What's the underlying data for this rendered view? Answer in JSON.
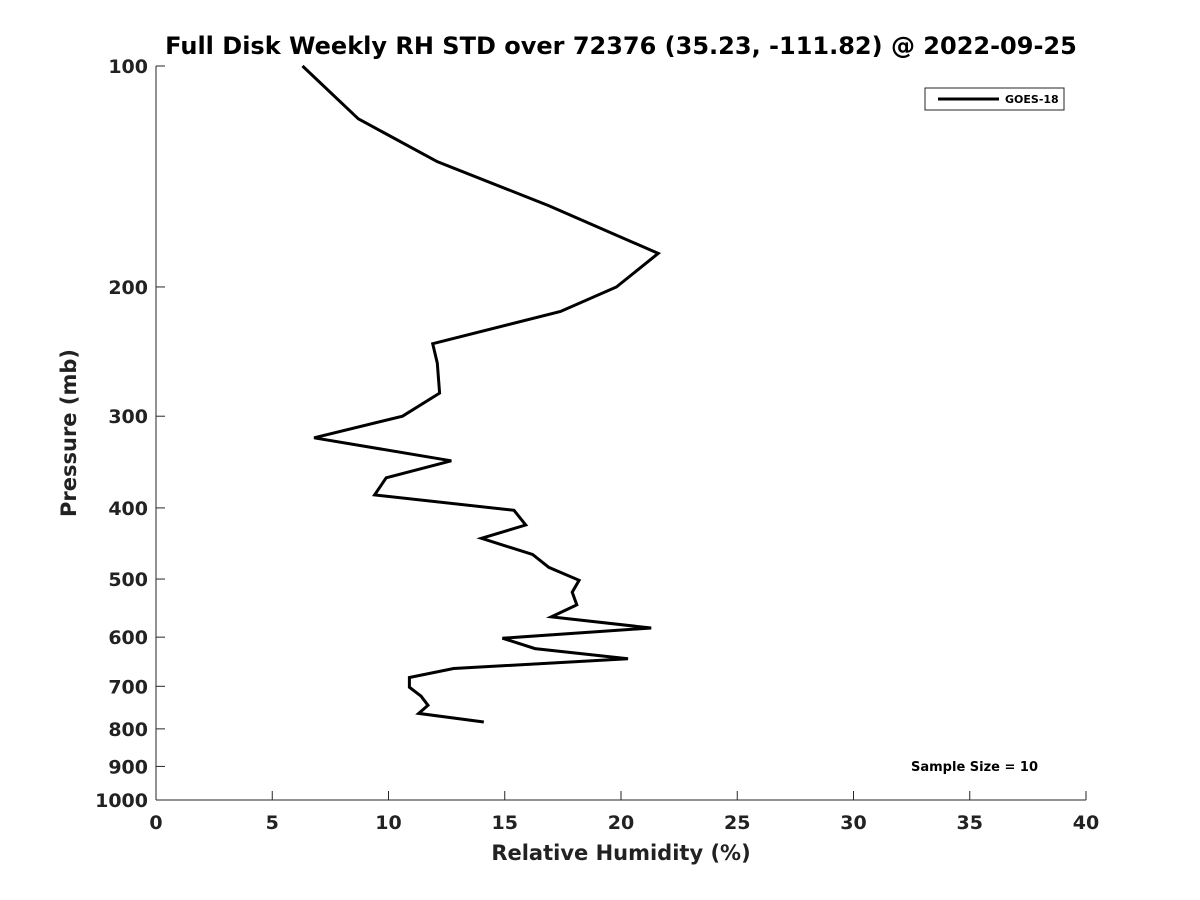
{
  "chart_data": {
    "type": "line",
    "title": "Full Disk Weekly RH STD over 72376 (35.23, -111.82) @ 2022-09-25",
    "xlabel": "Relative Humidity (%)",
    "ylabel": "Pressure (mb)",
    "xlim": [
      0,
      40
    ],
    "ylim": [
      100,
      1000
    ],
    "y_scale": "log",
    "y_reversed": true,
    "x_ticks": [
      0,
      5,
      10,
      15,
      20,
      25,
      30,
      35,
      40
    ],
    "y_ticks": [
      100,
      200,
      300,
      400,
      500,
      600,
      700,
      800,
      900,
      1000
    ],
    "grid": false,
    "legend_position": "top-right",
    "annotation": "Sample Size = 10",
    "series": [
      {
        "name": "GOES-18",
        "color": "#000000",
        "points": [
          {
            "x": 6.3,
            "y": 100
          },
          {
            "x": 8.7,
            "y": 118
          },
          {
            "x": 12.1,
            "y": 135
          },
          {
            "x": 16.9,
            "y": 155
          },
          {
            "x": 21.6,
            "y": 180
          },
          {
            "x": 19.8,
            "y": 200
          },
          {
            "x": 17.4,
            "y": 216
          },
          {
            "x": 11.9,
            "y": 239
          },
          {
            "x": 12.1,
            "y": 254
          },
          {
            "x": 12.2,
            "y": 279
          },
          {
            "x": 10.6,
            "y": 300
          },
          {
            "x": 6.8,
            "y": 321
          },
          {
            "x": 12.7,
            "y": 345
          },
          {
            "x": 9.9,
            "y": 364
          },
          {
            "x": 9.4,
            "y": 384
          },
          {
            "x": 15.4,
            "y": 403
          },
          {
            "x": 15.9,
            "y": 422
          },
          {
            "x": 14.0,
            "y": 440
          },
          {
            "x": 16.2,
            "y": 463
          },
          {
            "x": 16.9,
            "y": 482
          },
          {
            "x": 18.2,
            "y": 502
          },
          {
            "x": 17.9,
            "y": 521
          },
          {
            "x": 18.1,
            "y": 542
          },
          {
            "x": 17.0,
            "y": 563
          },
          {
            "x": 21.3,
            "y": 583
          },
          {
            "x": 14.9,
            "y": 602
          },
          {
            "x": 16.3,
            "y": 622
          },
          {
            "x": 20.3,
            "y": 642
          },
          {
            "x": 12.8,
            "y": 662
          },
          {
            "x": 10.9,
            "y": 681
          },
          {
            "x": 10.9,
            "y": 702
          },
          {
            "x": 11.4,
            "y": 722
          },
          {
            "x": 11.7,
            "y": 743
          },
          {
            "x": 11.3,
            "y": 762
          },
          {
            "x": 14.1,
            "y": 783
          }
        ]
      }
    ]
  }
}
